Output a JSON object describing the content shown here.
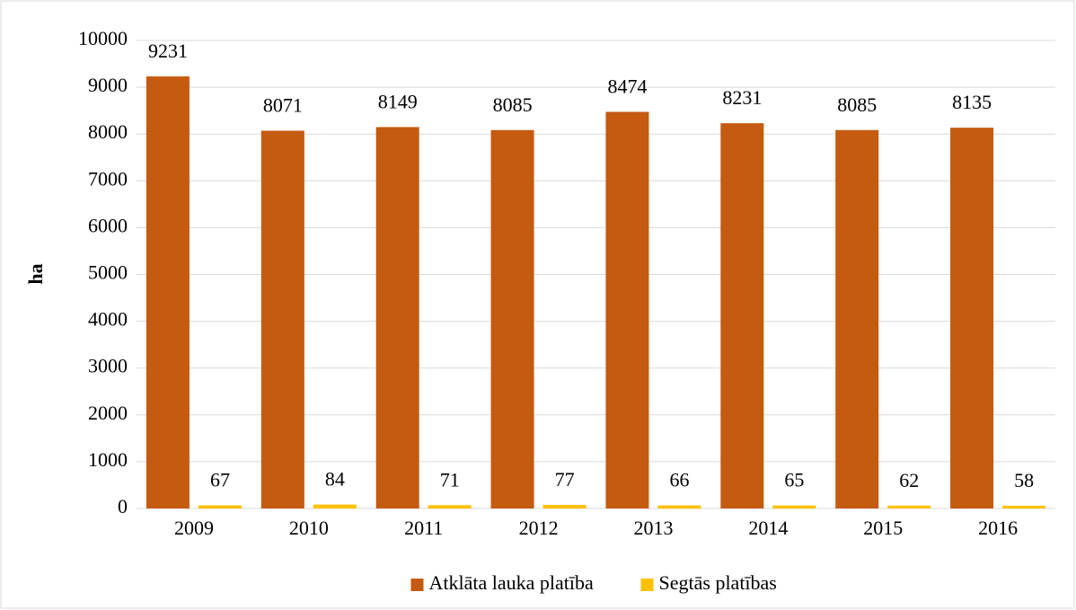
{
  "chart_data": {
    "type": "bar",
    "ylabel": "ha",
    "categories": [
      "2009",
      "2010",
      "2011",
      "2012",
      "2013",
      "2014",
      "2015",
      "2016"
    ],
    "series": [
      {
        "name": "Atklāta lauka platība",
        "color": "#c55a11",
        "values": [
          9231,
          8071,
          8149,
          8085,
          8474,
          8231,
          8085,
          8135
        ]
      },
      {
        "name": "Segtās platības",
        "color": "#ffc000",
        "values": [
          67,
          84,
          71,
          77,
          66,
          65,
          62,
          58
        ]
      }
    ],
    "ylim": [
      0,
      10000
    ],
    "yticks": [
      0,
      1000,
      2000,
      3000,
      4000,
      5000,
      6000,
      7000,
      8000,
      9000,
      10000
    ],
    "grid": true,
    "legend": "bottom"
  }
}
